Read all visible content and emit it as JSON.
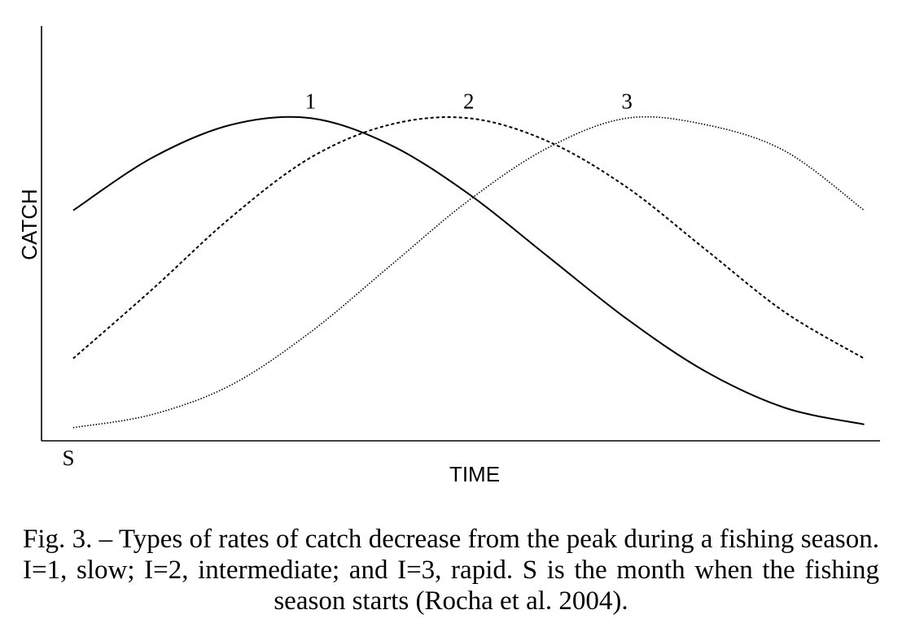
{
  "chart_data": {
    "type": "line",
    "xlabel": "TIME",
    "ylabel": "CATCH",
    "x_start_label": "S",
    "x": [
      0,
      0.1,
      0.2,
      0.3,
      0.4,
      0.5,
      0.6,
      0.7,
      0.8,
      0.9,
      1.0
    ],
    "series": [
      {
        "name": "1",
        "style": "solid",
        "values": [
          0.7,
          0.86,
          0.96,
          0.98,
          0.9,
          0.75,
          0.56,
          0.37,
          0.21,
          0.1,
          0.05
        ]
      },
      {
        "name": "2",
        "style": "dashed",
        "values": [
          0.25,
          0.46,
          0.68,
          0.86,
          0.96,
          0.98,
          0.91,
          0.77,
          0.58,
          0.39,
          0.25
        ]
      },
      {
        "name": "3",
        "style": "dotted",
        "values": [
          0.04,
          0.08,
          0.17,
          0.33,
          0.53,
          0.73,
          0.89,
          0.98,
          0.96,
          0.88,
          0.7
        ]
      }
    ],
    "ylim": [
      0,
      1.26
    ],
    "xlim": [
      -0.04,
      1.02
    ],
    "grid": false
  },
  "caption": "Fig. 3. – Types of rates of catch decrease from the peak during a fishing season. I=1, slow; I=2, intermediate; and I=3, rapid. S is the month when the fishing season starts (Rocha et al. 2004)."
}
